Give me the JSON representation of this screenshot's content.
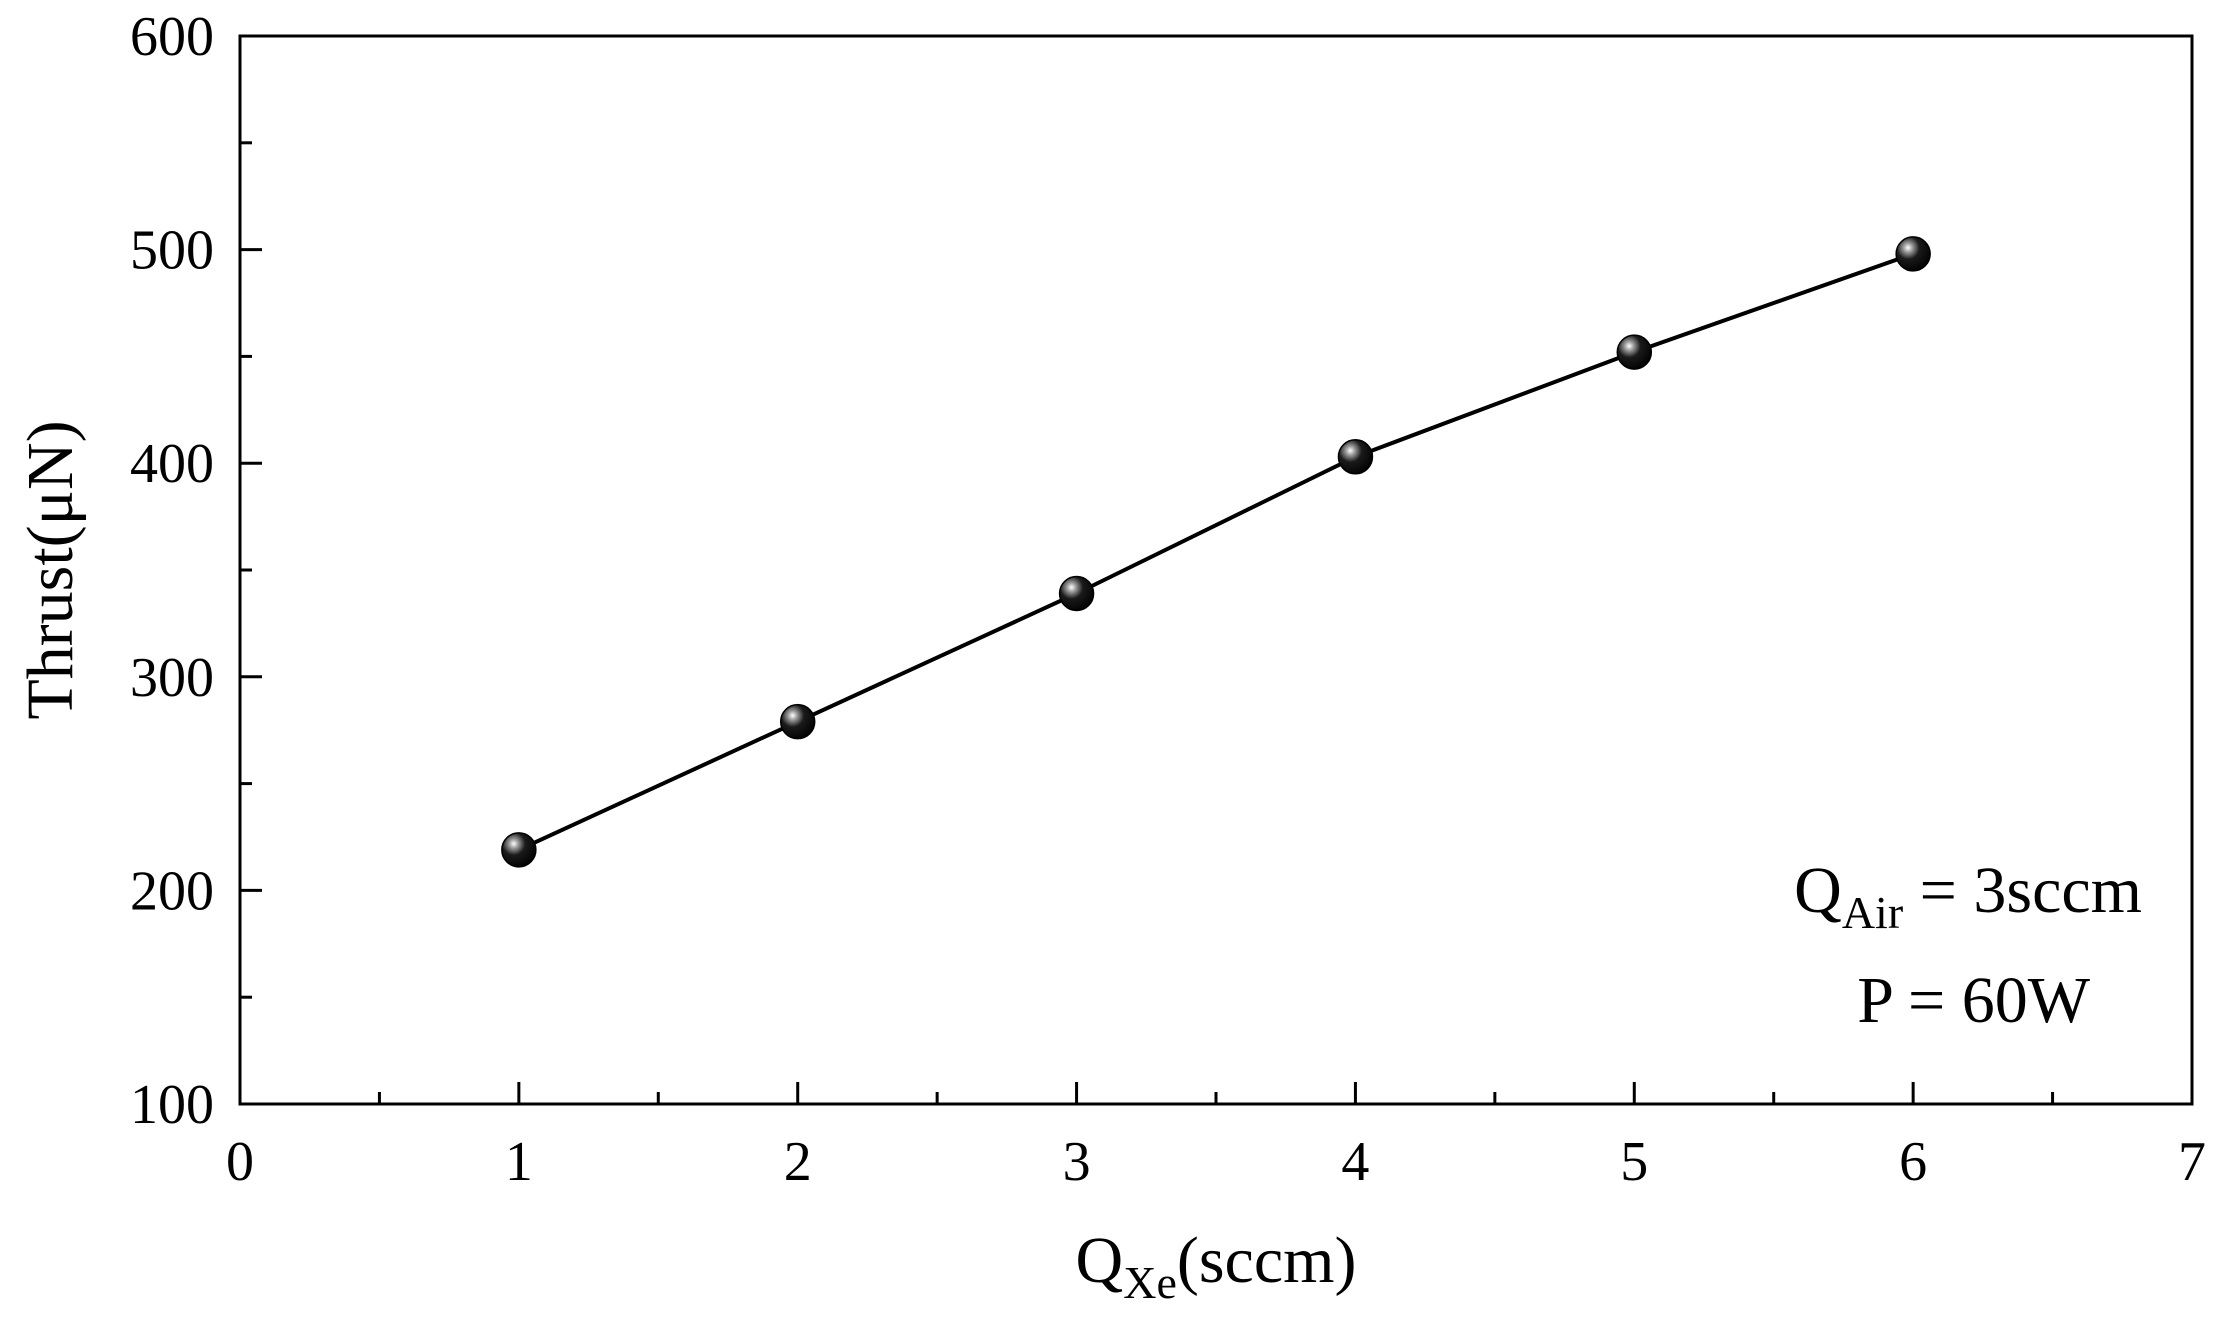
{
  "chart_data": {
    "type": "line",
    "title": "",
    "xlabel": {
      "main": "Q",
      "sub": "Xe",
      "rest": "(sccm)"
    },
    "ylabel": "Thrust(μN)",
    "xlim": [
      0,
      7
    ],
    "ylim": [
      100,
      600
    ],
    "x_ticks": [
      "0",
      "1",
      "2",
      "3",
      "4",
      "5",
      "6",
      "7"
    ],
    "y_ticks": [
      "100",
      "200",
      "300",
      "400",
      "500",
      "600"
    ],
    "grid": false,
    "series": [
      {
        "x": [
          1,
          2,
          3,
          4,
          5,
          6
        ],
        "y": [
          219,
          279,
          339,
          403,
          452,
          498
        ],
        "marker": "black sphere",
        "color": "#000000"
      }
    ],
    "annotations": {
      "line1": {
        "main": "Q",
        "sub": "Air",
        "rest": " = 3sccm"
      },
      "line2": "P = 60W"
    }
  }
}
